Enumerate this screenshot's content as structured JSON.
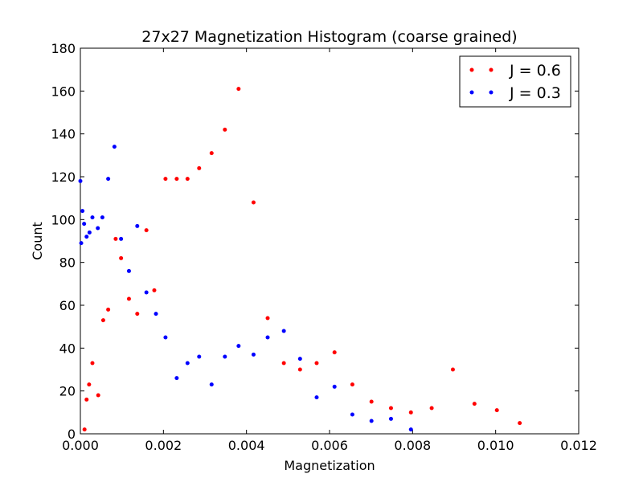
{
  "chart_data": {
    "type": "scatter",
    "title": "27x27 Magnetization Histogram (coarse grained)",
    "xlabel": "Magnetization",
    "ylabel": "Count",
    "xlim": [
      0,
      0.012
    ],
    "ylim": [
      0,
      180
    ],
    "xticks": [
      0,
      0.002,
      0.004,
      0.006,
      0.008,
      0.01,
      0.012
    ],
    "xtick_labels": [
      "0.000",
      "0.002",
      "0.004",
      "0.006",
      "0.008",
      "0.010",
      "0.012"
    ],
    "yticks": [
      0,
      20,
      40,
      60,
      80,
      100,
      120,
      140,
      160,
      180
    ],
    "ytick_labels": [
      "0",
      "20",
      "40",
      "60",
      "80",
      "100",
      "120",
      "140",
      "160",
      "180"
    ],
    "grid": false,
    "legend_position": "top-right",
    "series": [
      {
        "name": "J = 0.6",
        "color": "#ff0000",
        "x": [
          0.0001,
          0.00015,
          0.00021,
          0.00029,
          0.00043,
          0.00055,
          0.00067,
          0.00085,
          0.00098,
          0.00117,
          0.00137,
          0.00159,
          0.00178,
          0.00205,
          0.00232,
          0.00258,
          0.00286,
          0.00316,
          0.00348,
          0.00381,
          0.00417,
          0.00451,
          0.0049,
          0.00529,
          0.00569,
          0.00612,
          0.00655,
          0.00701,
          0.00748,
          0.00796,
          0.00846,
          0.00897,
          0.00949,
          0.01003,
          0.01058
        ],
        "y": [
          2,
          16,
          23,
          33,
          18,
          53,
          58,
          91,
          82,
          63,
          56,
          95,
          67,
          119,
          119,
          119,
          124,
          131,
          142,
          161,
          108,
          54,
          33,
          30,
          33,
          38,
          23,
          15,
          12,
          10,
          12,
          30,
          14,
          11,
          5
        ]
      },
      {
        "name": "J = 0.3",
        "color": "#0000ff",
        "x": [
          0.0,
          2e-05,
          5e-05,
          9e-05,
          0.00015,
          0.00022,
          0.00029,
          0.00042,
          0.00053,
          0.00067,
          0.00082,
          0.00098,
          0.00117,
          0.00137,
          0.00159,
          0.00182,
          0.00205,
          0.00232,
          0.00258,
          0.00286,
          0.00316,
          0.00348,
          0.00381,
          0.00417,
          0.00451,
          0.0049,
          0.00529,
          0.00569,
          0.00612,
          0.00655,
          0.00701,
          0.00748,
          0.00796
        ],
        "y": [
          118,
          89,
          104,
          98,
          92,
          94,
          101,
          96,
          101,
          119,
          134,
          91,
          76,
          97,
          66,
          56,
          45,
          26,
          33,
          36,
          23,
          36,
          41,
          37,
          45,
          48,
          35,
          17,
          22,
          9,
          6,
          7,
          2
        ]
      }
    ]
  }
}
